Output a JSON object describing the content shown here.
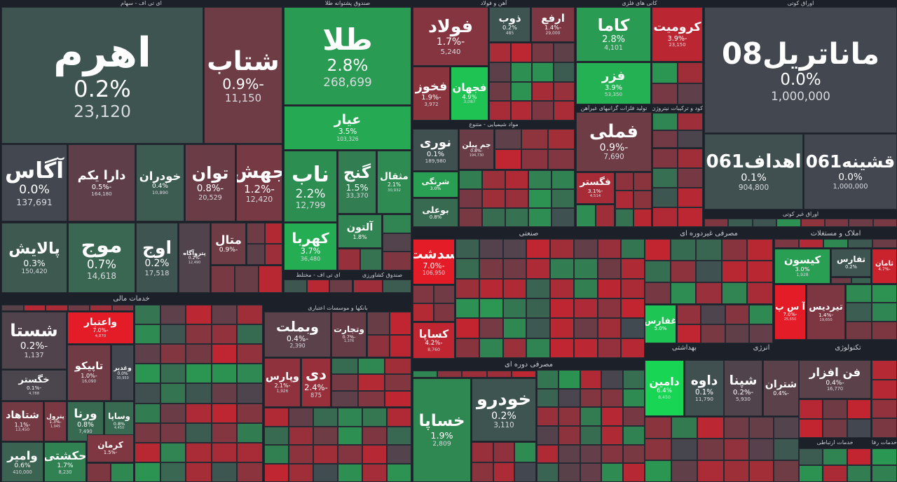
{
  "sectors": [
    {
      "title": "ای تی اف - سهام",
      "tiles": [
        {
          "name": "اهرم",
          "change": "0.2%",
          "volume": "23,120"
        },
        {
          "name": "شتاب",
          "change": "-0.9%",
          "volume": "11,150"
        },
        {
          "name": "آگاس",
          "change": "0.0%",
          "volume": "137,691"
        },
        {
          "name": "دارا یکم",
          "change": "-0.5%",
          "volume": "164,180"
        },
        {
          "name": "خودران",
          "change": "0.4%",
          "volume": "10,890"
        },
        {
          "name": "توان",
          "change": "-0.8%",
          "volume": "20,529"
        },
        {
          "name": "جهش",
          "change": "-1.2%",
          "volume": "12,420"
        },
        {
          "name": "پالایش",
          "change": "0.3%",
          "volume": "150,420"
        },
        {
          "name": "موج",
          "change": "0.7%",
          "volume": "14,618"
        },
        {
          "name": "اوج",
          "change": "0.2%",
          "volume": "17,518"
        },
        {
          "name": "پتروآگاه",
          "change": "-0.2%",
          "volume": "12,490"
        },
        {
          "name": "متال",
          "change": "-0.9%"
        }
      ]
    },
    {
      "title": "صندوق پشتوانه طلا",
      "tiles": [
        {
          "name": "طلا",
          "change": "2.8%",
          "volume": "268,699"
        },
        {
          "name": "عیار",
          "change": "3.5%",
          "volume": "103,326"
        },
        {
          "name": "ناب",
          "change": "2.2%",
          "volume": "12,799"
        },
        {
          "name": "گنج",
          "change": "1.5%",
          "volume": "33,370"
        },
        {
          "name": "مثقال",
          "change": "2.1%",
          "volume": "30,932"
        },
        {
          "name": "کهربا",
          "change": "3.7%",
          "volume": "36,480"
        },
        {
          "name": "آلتون",
          "change": "1.8%"
        }
      ]
    },
    {
      "title": "ای تی اف - مختلط",
      "tiles": []
    },
    {
      "title": "صندوق کشاورزی",
      "tiles": []
    },
    {
      "title": "آهن و فولاد",
      "tiles": [
        {
          "name": "فولاد",
          "change": "-1.7%",
          "volume": "5,240"
        },
        {
          "name": "ذوب",
          "change": "0.2%",
          "volume": "485"
        },
        {
          "name": "ارفع",
          "change": "-1.4%",
          "volume": "29,000"
        },
        {
          "name": "فخوز",
          "change": "-1.9%",
          "volume": "3,972"
        },
        {
          "name": "فجهان",
          "change": "4.9%",
          "volume": "3,087"
        }
      ]
    },
    {
      "title": "کانی های فلزی",
      "tiles": [
        {
          "name": "کاما",
          "change": "2.8%",
          "volume": "4,101"
        },
        {
          "name": "کرومیت",
          "change": "-3.9%",
          "volume": "23,150"
        },
        {
          "name": "فزر",
          "change": "3.9%",
          "volume": "53,350"
        }
      ]
    },
    {
      "title": "تولید فلزات گرانبهای غیرآهن",
      "tiles": [
        {
          "name": "فملی",
          "change": "-0.9%",
          "volume": "7,690"
        },
        {
          "name": "فگستر",
          "change": "-3.1%",
          "volume": "4,514"
        }
      ]
    },
    {
      "title": "کود و ترکیبات نیتروژن",
      "tiles": []
    },
    {
      "title": "اوراق کوتی",
      "tiles": [
        {
          "name": "ماناتریل08",
          "change": "0.0%",
          "volume": "1,000,000"
        },
        {
          "name": "اهداف061",
          "change": "0.1%",
          "volume": "904,800"
        },
        {
          "name": "قشینه061",
          "change": "0.0%",
          "volume": "1,000,000"
        }
      ]
    },
    {
      "title": "اوراق غیر کوتی",
      "tiles": []
    },
    {
      "title": "مواد شیمیایی - متنوع",
      "tiles": [
        {
          "name": "نوری",
          "change": "0.1%",
          "volume": "189,980"
        },
        {
          "name": "جم پیلن",
          "change": "-0.8%",
          "volume": "194,730"
        },
        {
          "name": "شرنگی",
          "change": "3.0%"
        },
        {
          "name": "بوعلی",
          "change": "0.8%"
        }
      ]
    },
    {
      "title": "صنعتی",
      "tiles": [
        {
          "name": "سدشت",
          "change": "-7.0%",
          "volume": "106,950"
        },
        {
          "name": "کساپا",
          "change": "-4.2%",
          "volume": "8,760"
        }
      ]
    },
    {
      "title": "مصرفی غیردوره ای",
      "tiles": [
        {
          "name": "غفارس",
          "change": "5.0%"
        }
      ]
    },
    {
      "title": "املاک و مستغلات",
      "tiles": [
        {
          "name": "کیسون",
          "change": "3.0%",
          "volume": "1,928"
        },
        {
          "name": "تفارس",
          "change": "0.2%"
        },
        {
          "name": "ثامان",
          "change": "-4.7%"
        },
        {
          "name": "آ س پ",
          "change": "-7.0%",
          "volume": "25,650"
        },
        {
          "name": "تیردیس",
          "change": "-1.4%",
          "volume": "19,650"
        }
      ]
    },
    {
      "title": "خدمات مالی",
      "tiles": [
        {
          "name": "شستا",
          "change": "-0.2%",
          "volume": "1,137"
        },
        {
          "name": "واعتبار",
          "change": "-7.0%",
          "volume": "4,870"
        },
        {
          "name": "خگستر",
          "change": "-0.1%",
          "volume": "4,788"
        },
        {
          "name": "تاپیکو",
          "change": "-1.0%",
          "volume": "16,090"
        },
        {
          "name": "وغدیر",
          "change": "0.0%",
          "volume": "30,950"
        },
        {
          "name": "شتاهاد",
          "change": "-1.1%",
          "volume": "13,450"
        },
        {
          "name": "پترول",
          "change": "-1.3%",
          "volume": "1,945"
        },
        {
          "name": "ورنا",
          "change": "0.8%",
          "volume": "7,490"
        },
        {
          "name": "وساپا",
          "change": "0.8%",
          "volume": "4,450"
        },
        {
          "name": "وامیر",
          "change": "0.6%",
          "volume": "410,000"
        },
        {
          "name": "حکشتی",
          "change": "1.7%",
          "volume": "8,230"
        },
        {
          "name": "کرمان",
          "change": "-1.5%"
        }
      ]
    },
    {
      "title": "بانکها و موسسات اعتباری",
      "tiles": [
        {
          "name": "وبملت",
          "change": "-0.4%",
          "volume": "2,390"
        },
        {
          "name": "وتجارت",
          "change": "-0.7%",
          "volume": "1,376"
        },
        {
          "name": "وپارس",
          "change": "-2.1%",
          "volume": "1,926"
        },
        {
          "name": "دی",
          "change": "-2.4%",
          "volume": "875"
        }
      ]
    },
    {
      "title": "مصرفی دوره ای",
      "tiles": [
        {
          "name": "خساپا",
          "change": "1.9%",
          "volume": "2,809"
        },
        {
          "name": "خودرو",
          "change": "0.2%",
          "volume": "3,110"
        }
      ]
    },
    {
      "title": "بهداشتی",
      "tiles": [
        {
          "name": "دامین",
          "change": "6.4%",
          "volume": "8,450"
        },
        {
          "name": "داوه",
          "change": "0.1%",
          "volume": "11,790"
        }
      ]
    },
    {
      "title": "انرژی",
      "tiles": [
        {
          "name": "شپنا",
          "change": "-0.2%",
          "volume": "5,930"
        },
        {
          "name": "شتران",
          "change": "-0.4%"
        }
      ]
    },
    {
      "title": "تکنولوژی",
      "tiles": [
        {
          "name": "فن افزار",
          "change": "-0.4%",
          "volume": "16,770"
        }
      ]
    },
    {
      "title": "خدمات ارتباطی",
      "tiles": []
    },
    {
      "title": "خدمات رفاهی",
      "tiles": []
    }
  ]
}
